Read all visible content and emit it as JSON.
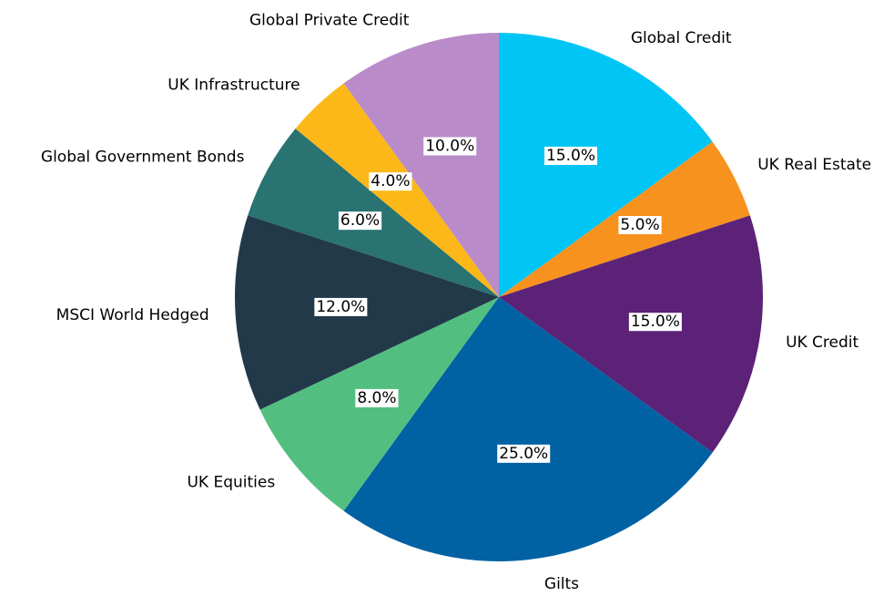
{
  "chart_data": {
    "type": "pie",
    "categories": [
      "Global Credit",
      "UK Real Estate",
      "UK Credit",
      "Gilts",
      "UK Equities",
      "MSCI World Hedged",
      "Global Government Bonds",
      "UK Infrastructure",
      "Global Private Credit"
    ],
    "values": [
      15,
      5,
      15,
      25,
      8,
      12,
      6,
      4,
      10
    ],
    "value_labels": [
      "15.0%",
      "5.0%",
      "15.0%",
      "25.0%",
      "8.0%",
      "12.0%",
      "6.0%",
      "4.0%",
      "10.0%"
    ],
    "colors": [
      "#00c5f5",
      "#f7921e",
      "#5c2278",
      "#0061a3",
      "#52bf80",
      "#22394a",
      "#297372",
      "#fbb818",
      "#b98cc9"
    ]
  }
}
